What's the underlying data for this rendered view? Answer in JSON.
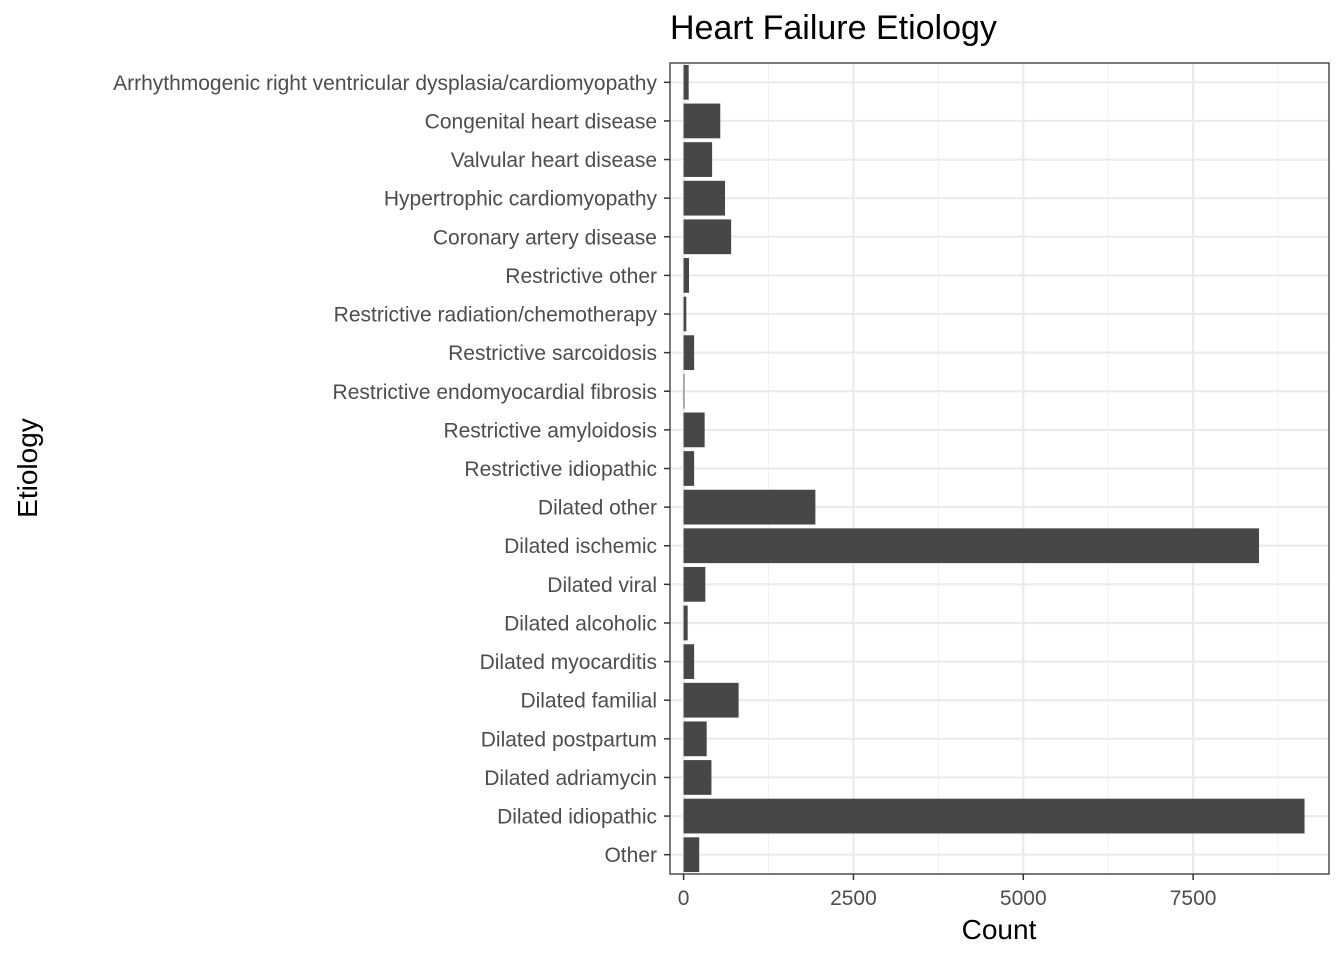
{
  "chart_data": {
    "type": "bar",
    "orientation": "horizontal",
    "title": "Heart Failure Etiology",
    "xlabel": "Count",
    "ylabel": "Etiology",
    "xlim": [
      -200,
      9500
    ],
    "x_ticks": [
      0,
      2500,
      5000,
      7500
    ],
    "x_tick_labels": [
      "0",
      "2500",
      "5000",
      "7500"
    ],
    "x_minor_ticks": [
      1250,
      3750,
      6250,
      8750
    ],
    "grid": true,
    "legend": "none",
    "categories": [
      "Arrhythmogenic right ventricular dysplasia/cardiomyopathy",
      "Congenital heart disease",
      "Valvular heart disease",
      "Hypertrophic cardiomyopathy",
      "Coronary artery disease",
      "Restrictive other",
      "Restrictive radiation/chemotherapy",
      "Restrictive sarcoidosis",
      "Restrictive endomyocardial fibrosis",
      "Restrictive amyloidosis",
      "Restrictive idiopathic",
      "Dilated other",
      "Dilated ischemic",
      "Dilated viral",
      "Dilated alcoholic",
      "Dilated myocarditis",
      "Dilated familial",
      "Dilated postpartum",
      "Dilated adriamycin",
      "Dilated idiopathic",
      "Other"
    ],
    "values": [
      75,
      540,
      420,
      610,
      700,
      80,
      40,
      155,
      5,
      310,
      155,
      1940,
      8470,
      320,
      60,
      155,
      810,
      340,
      410,
      9140,
      230
    ],
    "colors": {
      "bar": "#474747",
      "panel_background": "#ffffff",
      "panel_border": "#333333",
      "grid_major": "#ebebeb",
      "grid_minor": "#f2f2f2",
      "tick_text": "#4d4d4d",
      "title_text": "#000000"
    }
  }
}
